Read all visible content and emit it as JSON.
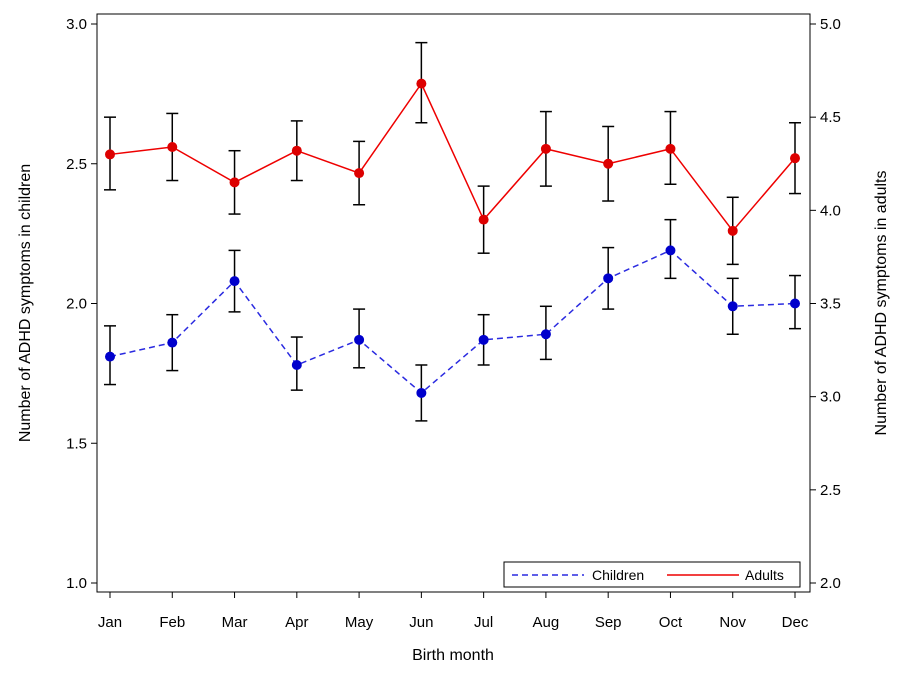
{
  "chart_data": {
    "type": "line",
    "title": "",
    "xlabel": "Birth month",
    "ylabel_left": "Number of ADHD symptoms in children",
    "ylabel_right": "Number of ADHD symptoms in adults",
    "categories": [
      "Jan",
      "Feb",
      "Mar",
      "Apr",
      "May",
      "Jun",
      "Jul",
      "Aug",
      "Sep",
      "Oct",
      "Nov",
      "Dec"
    ],
    "y_left": {
      "min": 1.0,
      "max": 3.0,
      "ticks": [
        1.0,
        1.5,
        2.0,
        2.5,
        3.0
      ],
      "tick_labels": [
        "1.0",
        "1.5",
        "2.0",
        "2.5",
        "3.0"
      ]
    },
    "y_right": {
      "min": 2.0,
      "max": 5.0,
      "ticks": [
        2.0,
        2.5,
        3.0,
        3.5,
        4.0,
        4.5,
        5.0
      ],
      "tick_labels": [
        "2.0",
        "2.5",
        "3.0",
        "3.5",
        "4.0",
        "4.5",
        "5.0"
      ]
    },
    "grid": false,
    "legend_position": "bottom-right",
    "series": [
      {
        "name": "Children",
        "axis": "left",
        "color": "#2a2ae0",
        "marker_color": "#0000cc",
        "dash": true,
        "values": [
          1.81,
          1.86,
          2.08,
          1.78,
          1.87,
          1.68,
          1.87,
          1.89,
          2.09,
          2.19,
          1.99,
          2.0
        ],
        "lower": [
          1.71,
          1.76,
          1.97,
          1.69,
          1.77,
          1.58,
          1.78,
          1.8,
          1.98,
          2.09,
          1.89,
          1.91
        ],
        "upper": [
          1.92,
          1.96,
          2.19,
          1.88,
          1.98,
          1.78,
          1.96,
          1.99,
          2.2,
          2.3,
          2.09,
          2.1
        ]
      },
      {
        "name": "Adults",
        "axis": "right",
        "color": "#ee0000",
        "marker_color": "#dd0000",
        "dash": false,
        "values": [
          4.3,
          4.34,
          4.15,
          4.32,
          4.2,
          4.68,
          3.95,
          4.33,
          4.25,
          4.33,
          3.89,
          4.28
        ],
        "lower": [
          4.11,
          4.16,
          3.98,
          4.16,
          4.03,
          4.47,
          3.77,
          4.13,
          4.05,
          4.14,
          3.71,
          4.09
        ],
        "upper": [
          4.5,
          4.52,
          4.32,
          4.48,
          4.37,
          4.9,
          4.13,
          4.53,
          4.45,
          4.53,
          4.07,
          4.47
        ]
      }
    ]
  }
}
